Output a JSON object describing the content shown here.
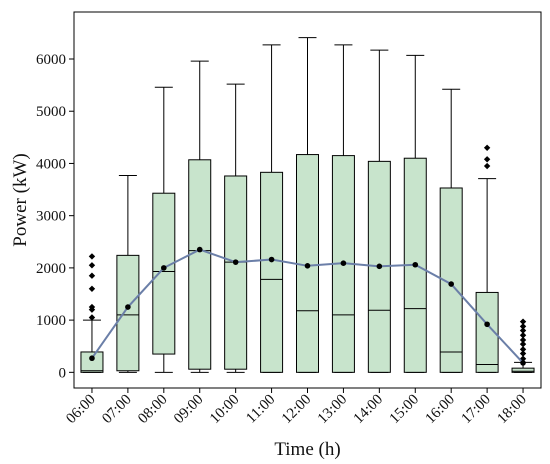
{
  "chart_data": {
    "type": "boxplot",
    "title": "",
    "xlabel": "Time (h)",
    "ylabel": "Power (kW)",
    "ylim": [
      -300,
      6900
    ],
    "yticks": [
      0,
      1000,
      2000,
      3000,
      4000,
      5000,
      6000
    ],
    "grid": false,
    "legend": "none",
    "colors": {
      "box_fill": "#c8e4cc",
      "line": "#6b7fa8",
      "marker": "#000000"
    },
    "categories": [
      "06:00",
      "07:00",
      "08:00",
      "09:00",
      "10:00",
      "11:00",
      "12:00",
      "13:00",
      "14:00",
      "15:00",
      "16:00",
      "17:00",
      "18:00"
    ],
    "boxes": [
      {
        "whisker_low": 0,
        "q1": 0,
        "median": 30,
        "q3": 390,
        "whisker_high": 1000,
        "mean": 270,
        "outliers": [
          1050,
          1200,
          1250,
          1600,
          1850,
          2050,
          2220
        ]
      },
      {
        "whisker_low": 0,
        "q1": 30,
        "median": 1100,
        "q3": 2240,
        "whisker_high": 3770,
        "mean": 1250,
        "outliers": []
      },
      {
        "whisker_low": 0,
        "q1": 350,
        "median": 1930,
        "q3": 3430,
        "whisker_high": 5460,
        "mean": 2000,
        "outliers": []
      },
      {
        "whisker_low": 0,
        "q1": 60,
        "median": 2330,
        "q3": 4070,
        "whisker_high": 5960,
        "mean": 2350,
        "outliers": []
      },
      {
        "whisker_low": 0,
        "q1": 60,
        "median": 2110,
        "q3": 3760,
        "whisker_high": 5520,
        "mean": 2110,
        "outliers": []
      },
      {
        "whisker_low": 0,
        "q1": 0,
        "median": 1780,
        "q3": 3830,
        "whisker_high": 6270,
        "mean": 2160,
        "outliers": []
      },
      {
        "whisker_low": 0,
        "q1": 0,
        "median": 1180,
        "q3": 4170,
        "whisker_high": 6410,
        "mean": 2040,
        "outliers": []
      },
      {
        "whisker_low": 0,
        "q1": 0,
        "median": 1100,
        "q3": 4150,
        "whisker_high": 6270,
        "mean": 2090,
        "outliers": []
      },
      {
        "whisker_low": 0,
        "q1": 0,
        "median": 1190,
        "q3": 4040,
        "whisker_high": 6170,
        "mean": 2030,
        "outliers": []
      },
      {
        "whisker_low": 0,
        "q1": 0,
        "median": 1220,
        "q3": 4100,
        "whisker_high": 6070,
        "mean": 2060,
        "outliers": []
      },
      {
        "whisker_low": 0,
        "q1": 0,
        "median": 390,
        "q3": 3530,
        "whisker_high": 5420,
        "mean": 1690,
        "outliers": []
      },
      {
        "whisker_low": 0,
        "q1": 0,
        "median": 150,
        "q3": 1530,
        "whisker_high": 3710,
        "mean": 920,
        "outliers": [
          3950,
          4080,
          4300
        ]
      },
      {
        "whisker_low": 0,
        "q1": 0,
        "median": 20,
        "q3": 80,
        "whisker_high": 190,
        "mean": 180,
        "outliers": [
          260,
          360,
          440,
          540,
          620,
          710,
          800,
          880,
          970
        ]
      }
    ]
  }
}
